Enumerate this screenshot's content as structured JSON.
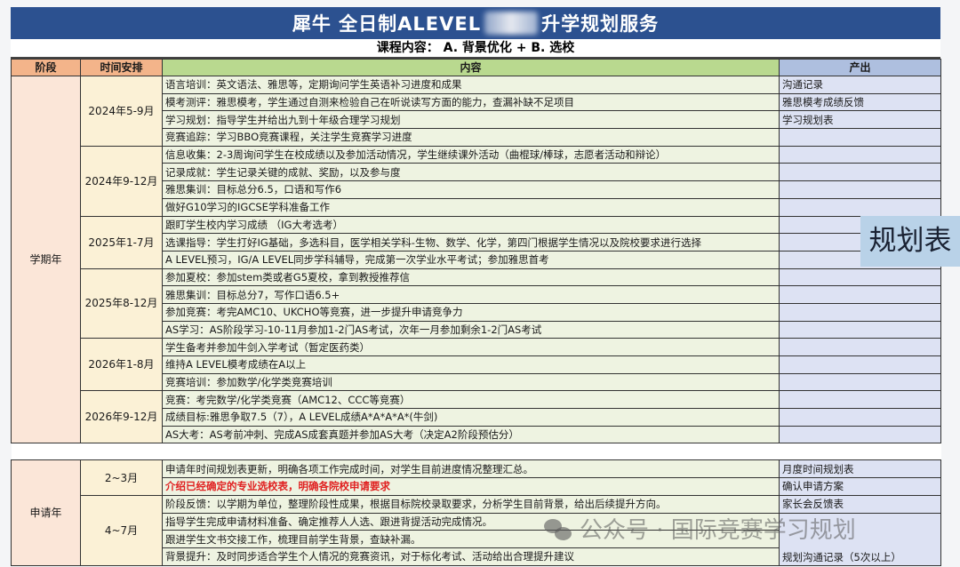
{
  "title": {
    "left": "犀牛 全日制ALEVEL",
    "right": "升学规划服务"
  },
  "subtitle": "课程内容： A. 背景优化  +  B. 选校",
  "headers": {
    "stage": "阶段",
    "time": "时间安排",
    "content": "内容",
    "output": "产出"
  },
  "term_year": {
    "stage": "学期年",
    "periods": [
      {
        "time": "2024年5-9月",
        "rows": [
          {
            "content": "语言培训：英文语法、雅思等，定期询问学生英语补习进度和成果",
            "output": "沟通记录"
          },
          {
            "content": "模考测评：雅思模考，学生通过自测来检验自己在听说读写方面的能力，查漏补缺不足项目",
            "output": "雅思模考成绩反馈"
          },
          {
            "content": "学习规划：指导学生并给出九到十年级合理学习规划",
            "output": "学习规划表"
          },
          {
            "content": "竞赛追踪：学习BBO竞赛课程，关注学生竞赛学习进度",
            "output": ""
          }
        ]
      },
      {
        "time": "2024年9-12月",
        "rows": [
          {
            "content": "信息收集：2-3周询问学生在校成绩以及参加活动情况，学生继续课外活动（曲棍球/棒球，志愿者活动和辩论）",
            "output": ""
          },
          {
            "content": "记录成就：学生记录关键的成就、奖励，以及参与度",
            "output": ""
          },
          {
            "content": "雅思集训：目标总分6.5，口语和写作6",
            "output": ""
          },
          {
            "content": "做好G10学习的IGCSE学科准备工作",
            "output": ""
          }
        ]
      },
      {
        "time": "2025年1-7月",
        "rows": [
          {
            "content": "跟盯学生校内学习成绩  （IG大考选考）",
            "output": ""
          },
          {
            "content": "选课指导：学生打好IG基础，多选科目，医学相关学科-生物、数学、化学，第四门根据学生情况以及院校要求进行选择",
            "output": ""
          },
          {
            "content": "A LEVEL预习，IG/A LEVEL同步学科辅导，完成第一次学业水平考试；参加雅思首考",
            "output": ""
          }
        ]
      },
      {
        "time": "2025年8-12月",
        "rows": [
          {
            "content": "参加夏校：参加stem类或者G5夏校，拿到教授推荐信",
            "output": ""
          },
          {
            "content": "雅思集训：目标总分7，写作口语6.5+",
            "output": ""
          },
          {
            "content": "参加竞赛：考完AMC10、UKCHO等竞赛，进一步提升申请竞争力",
            "output": ""
          },
          {
            "content": "AS学习：AS阶段学习-10-11月参加1-2门AS考试，次年一月参加剩余1-2门AS考试",
            "output": ""
          }
        ]
      },
      {
        "time": "2026年1-8月",
        "rows": [
          {
            "content": "学生备考并参加牛剑入学考试（暂定医药类）",
            "output": ""
          },
          {
            "content": "维持A LEVEL模考成绩在A以上",
            "output": ""
          },
          {
            "content": "竞赛培训：参加数学/化学类竞赛培训",
            "output": ""
          }
        ]
      },
      {
        "time": "2026年9-12月",
        "rows": [
          {
            "content": "竞赛：考完数学/化学类竞赛（AMC12、CCC等竞赛）",
            "output": ""
          },
          {
            "content": "成绩目标:雅思争取7.5（7），A LEVEL成绩A*A*A*A*(牛剑)",
            "output": ""
          },
          {
            "content": "AS大考：AS考前冲刺、完成AS成套真题并参加AS大考（决定A2阶段预估分）",
            "output": ""
          }
        ]
      }
    ]
  },
  "application_year": {
    "stage": "申请年",
    "p1": {
      "time": "2~3月",
      "rows": [
        {
          "content": "申请年时间规划表更新，明确各项工作完成时间，对学生目前进度情况整理汇总。",
          "output": "月度时间规划表"
        },
        {
          "content": "介绍已经确定的专业选校表，明确各院校申请要求",
          "output": "确认申请方案",
          "highlight": true
        }
      ]
    },
    "p2": {
      "time": "4~7月",
      "rows": [
        {
          "content": "阶段反馈：以学期为单位，整理阶段性成果，根据目标院校录取要求，分析学生目前背景，给出后续提升方向。",
          "output": "家长会反馈表"
        },
        {
          "content": "指导学生完成申请材料准备、确定推荐人人选、跟进背提活动完成情况。"
        },
        {
          "content": "跟进学生文书交接工作，梳理目前学生背景，查缺补漏。"
        },
        {
          "content": "背景提升：及时同步适合学生个人情况的竞赛资讯，对于标化考试、活动给出合理提升建议"
        }
      ],
      "merged_output": "规划沟通记录（5次以上）"
    }
  },
  "overlay_label": "规划表",
  "watermark": "公众号 · 国际竞赛学习规划",
  "colors": {
    "title_bar": "#2c5190",
    "header_stage": "#f3b48a",
    "header_content": "#b9d98f",
    "header_output": "#aebfdf",
    "highlight_text": "#e02020"
  }
}
